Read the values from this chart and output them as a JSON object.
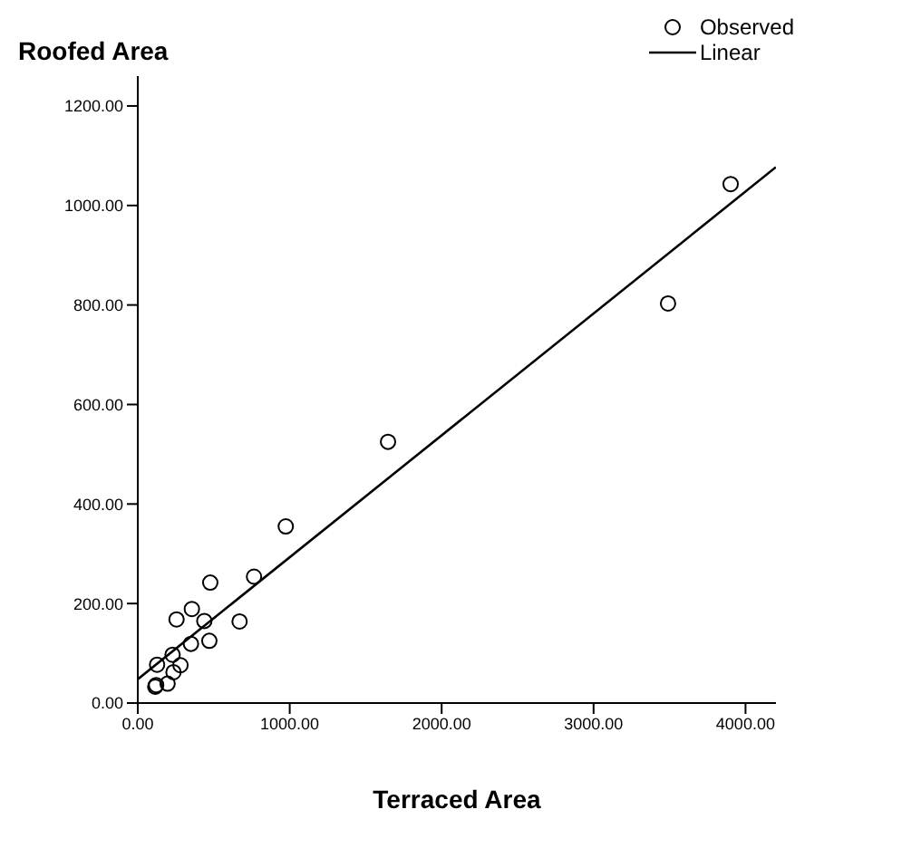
{
  "chart_data": {
    "type": "scatter",
    "ylabel": "Roofed Area",
    "xlabel": "Terraced Area",
    "xlim": [
      0,
      4200
    ],
    "ylim": [
      0,
      1260
    ],
    "xticks": [
      {
        "value": 0,
        "label": "0.00"
      },
      {
        "value": 1000,
        "label": "1000.00"
      },
      {
        "value": 2000,
        "label": "2000.00"
      },
      {
        "value": 3000,
        "label": "3000.00"
      },
      {
        "value": 4000,
        "label": "4000.00"
      }
    ],
    "yticks": [
      {
        "value": 0,
        "label": "0.00"
      },
      {
        "value": 200,
        "label": "200.00"
      },
      {
        "value": 400,
        "label": "400.00"
      },
      {
        "value": 600,
        "label": "600.00"
      },
      {
        "value": 800,
        "label": "800.00"
      },
      {
        "value": 1000,
        "label": "1000.00"
      },
      {
        "value": 1200,
        "label": "1200.00"
      }
    ],
    "legend": "top right",
    "series": [
      {
        "name": "Observed",
        "marker": "circle",
        "color": "#000000",
        "x": [
          974,
          477,
          765,
          356,
          255,
          438,
          670,
          471,
          350,
          229,
          127,
          281,
          235,
          196,
          121,
          115,
          3902,
          3490,
          1647
        ],
        "values": [
          355,
          242,
          254,
          189,
          168,
          165,
          164,
          125,
          119,
          97,
          77,
          76,
          62,
          39,
          36,
          33,
          1043,
          803,
          525
        ]
      },
      {
        "name": "Linear",
        "type": "line",
        "marker": "none",
        "line_style": "solid",
        "color": "#000000",
        "x": [
          0,
          4200
        ],
        "values": [
          48,
          1077
        ]
      }
    ]
  }
}
